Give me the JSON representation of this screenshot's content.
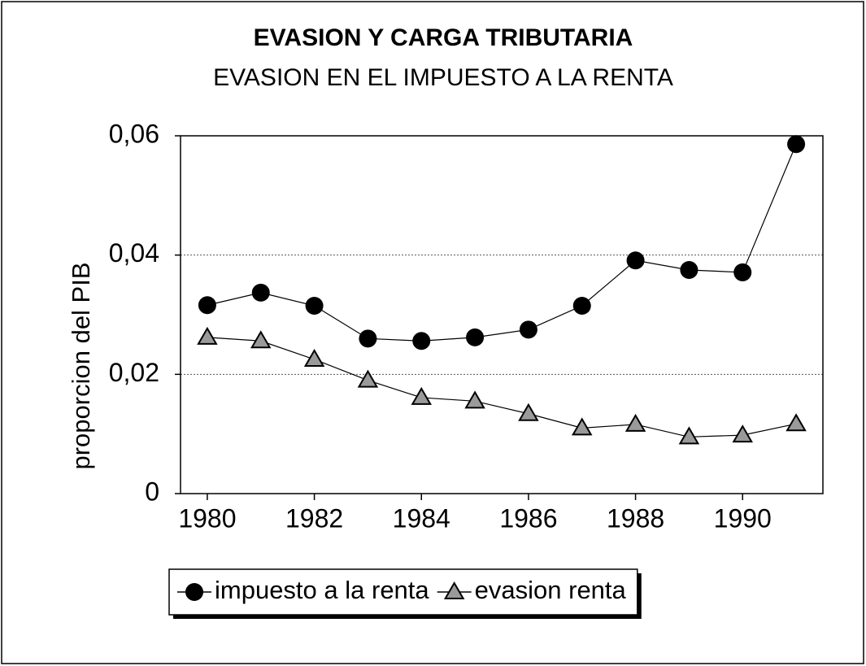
{
  "chart_data": {
    "type": "line",
    "title": "EVASION Y CARGA TRIBUTARIA",
    "subtitle": "EVASION EN EL IMPUESTO A LA RENTA",
    "y_label": "proporcion del PIB",
    "x": [
      1980,
      1981,
      1982,
      1983,
      1984,
      1985,
      1986,
      1987,
      1988,
      1989,
      1990,
      1991
    ],
    "series": [
      {
        "name": "impuesto a la renta",
        "color": "#000000",
        "marker": "circle",
        "values": [
          0.0316,
          0.0337,
          0.0315,
          0.026,
          0.0256,
          0.0262,
          0.0275,
          0.0315,
          0.0391,
          0.0375,
          0.0371,
          0.0586
        ]
      },
      {
        "name": "evasion renta",
        "color": "#000000",
        "marker": "triangle",
        "values": [
          0.0262,
          0.0256,
          0.0225,
          0.019,
          0.0161,
          0.0155,
          0.0134,
          0.011,
          0.0116,
          0.0095,
          0.0098,
          0.0117
        ]
      }
    ],
    "xlim": [
      1979.5,
      1991.5
    ],
    "xticks": [
      1980,
      1982,
      1984,
      1986,
      1988,
      1990
    ],
    "ylim": [
      0,
      0.06
    ],
    "yticks": [
      0,
      {
        "value": 0.02,
        "label": "0,02"
      },
      {
        "value": 0.04,
        "label": "0,04"
      },
      {
        "value": 0.06,
        "label": "0,06"
      }
    ],
    "grid": true,
    "legend": "bottom"
  }
}
